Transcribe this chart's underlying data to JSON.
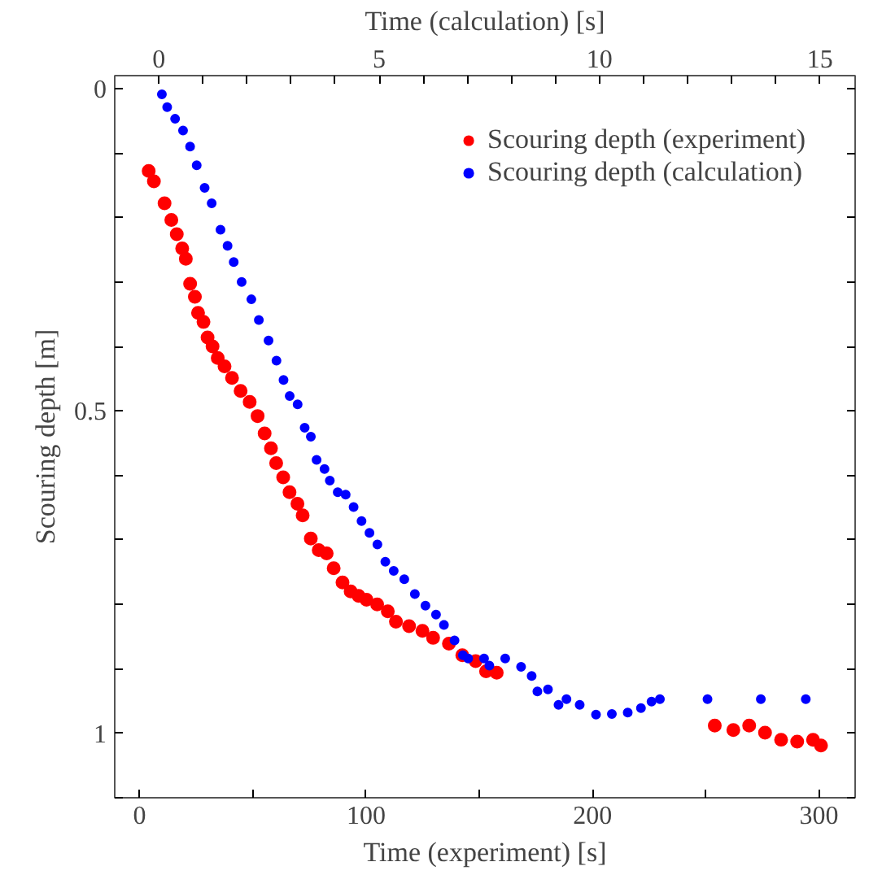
{
  "chart_data": {
    "type": "scatter",
    "xlabel": "Time (experiment) [s]",
    "x2label": "Time (calculation) [s]",
    "ylabel": "Scouring depth [m]",
    "xlim": [
      -11,
      316
    ],
    "xticks": [
      0,
      {
        "value": 50,
        "label": null
      },
      100,
      {
        "value": 150,
        "label": null
      },
      200,
      {
        "value": 250,
        "label": null
      },
      300
    ],
    "x2lim": [
      -1,
      15.8
    ],
    "x2ticks": [
      0,
      {
        "value": 1,
        "label": null
      },
      {
        "value": 2,
        "label": null
      },
      {
        "value": 3,
        "label": null
      },
      {
        "value": 4,
        "label": null
      },
      5,
      {
        "value": 6,
        "label": null
      },
      {
        "value": 7,
        "label": null
      },
      {
        "value": 8,
        "label": null
      },
      {
        "value": 9,
        "label": null
      },
      10,
      {
        "value": 11,
        "label": null
      },
      {
        "value": 12,
        "label": null
      },
      {
        "value": 13,
        "label": null
      },
      {
        "value": 14,
        "label": null
      },
      15
    ],
    "ylim": [
      1.1,
      -0.02
    ],
    "yticks": [
      0,
      {
        "value": 0.1,
        "label": null
      },
      {
        "value": 0.2,
        "label": null
      },
      {
        "value": 0.3,
        "label": null
      },
      {
        "value": 0.4,
        "label": null
      },
      0.5,
      {
        "value": 0.6,
        "label": null
      },
      {
        "value": 0.7,
        "label": null
      },
      {
        "value": 0.8,
        "label": null
      },
      {
        "value": 0.9,
        "label": null
      },
      1,
      {
        "value": 1.1,
        "label": null
      }
    ],
    "marker": "circle",
    "legend": "top right",
    "grid": false,
    "series": [
      {
        "name": "Scouring depth (experiment)",
        "color": "#ff0000",
        "x": [
          4,
          6.3,
          11,
          14,
          16.4,
          18.8,
          20.4,
          22.3,
          24.4,
          25.8,
          28.2,
          30,
          32.2,
          34.5,
          37.5,
          40.8,
          44.6,
          48.6,
          52.1,
          55.2,
          58,
          60.3,
          63.4,
          66.2,
          69.7,
          72,
          75.6,
          79.1,
          82.6,
          85.7,
          89.6,
          93.2,
          96.7,
          100.2,
          104.9,
          109.6,
          113.2,
          119,
          124.9,
          129.6,
          136.6,
          142.5,
          148.4,
          153,
          157.7,
          254,
          262.2,
          269.2,
          276.2,
          283.3,
          290.4,
          297.4,
          300.9
        ],
        "values": [
          0.128,
          0.144,
          0.178,
          0.204,
          0.226,
          0.248,
          0.264,
          0.303,
          0.323,
          0.348,
          0.362,
          0.386,
          0.4,
          0.418,
          0.431,
          0.449,
          0.469,
          0.486,
          0.508,
          0.535,
          0.558,
          0.581,
          0.603,
          0.626,
          0.644,
          0.662,
          0.698,
          0.716,
          0.721,
          0.744,
          0.766,
          0.78,
          0.787,
          0.793,
          0.8,
          0.811,
          0.827,
          0.834,
          0.841,
          0.852,
          0.861,
          0.879,
          0.888,
          0.904,
          0.906,
          0.988,
          0.995,
          0.988,
          0.999,
          1.01,
          1.013,
          1.01,
          1.019
        ]
      },
      {
        "name": "Scouring depth (calculation)",
        "color": "#0000ff",
        "axis": "x2",
        "x": [
          0.07,
          0.19,
          0.37,
          0.55,
          0.71,
          0.86,
          1.04,
          1.2,
          1.4,
          1.56,
          1.7,
          1.88,
          2.1,
          2.27,
          2.49,
          2.67,
          2.83,
          2.97,
          3.15,
          3.31,
          3.45,
          3.58,
          3.76,
          3.88,
          4.06,
          4.24,
          4.42,
          4.6,
          4.78,
          4.96,
          5.14,
          5.33,
          5.57,
          5.81,
          6.05,
          6.29,
          6.47,
          6.71,
          6.9,
          7.02,
          7.38,
          7.5,
          7.86,
          8.22,
          8.46,
          8.59,
          8.83,
          9.07,
          9.25,
          9.55,
          9.92,
          10.28,
          10.64,
          10.94,
          11.18,
          11.37,
          12.45,
          13.66,
          14.68
        ],
        "values": [
          0.009,
          0.029,
          0.047,
          0.065,
          0.09,
          0.119,
          0.154,
          0.178,
          0.219,
          0.244,
          0.269,
          0.3,
          0.327,
          0.359,
          0.391,
          0.422,
          0.452,
          0.477,
          0.49,
          0.526,
          0.54,
          0.576,
          0.59,
          0.608,
          0.626,
          0.63,
          0.649,
          0.671,
          0.689,
          0.707,
          0.734,
          0.748,
          0.761,
          0.784,
          0.802,
          0.816,
          0.832,
          0.856,
          0.879,
          0.884,
          0.884,
          0.895,
          0.884,
          0.897,
          0.911,
          0.935,
          0.932,
          0.956,
          0.947,
          0.956,
          0.971,
          0.97,
          0.968,
          0.961,
          0.951,
          0.947,
          0.947,
          0.947,
          0.947
        ]
      }
    ]
  }
}
